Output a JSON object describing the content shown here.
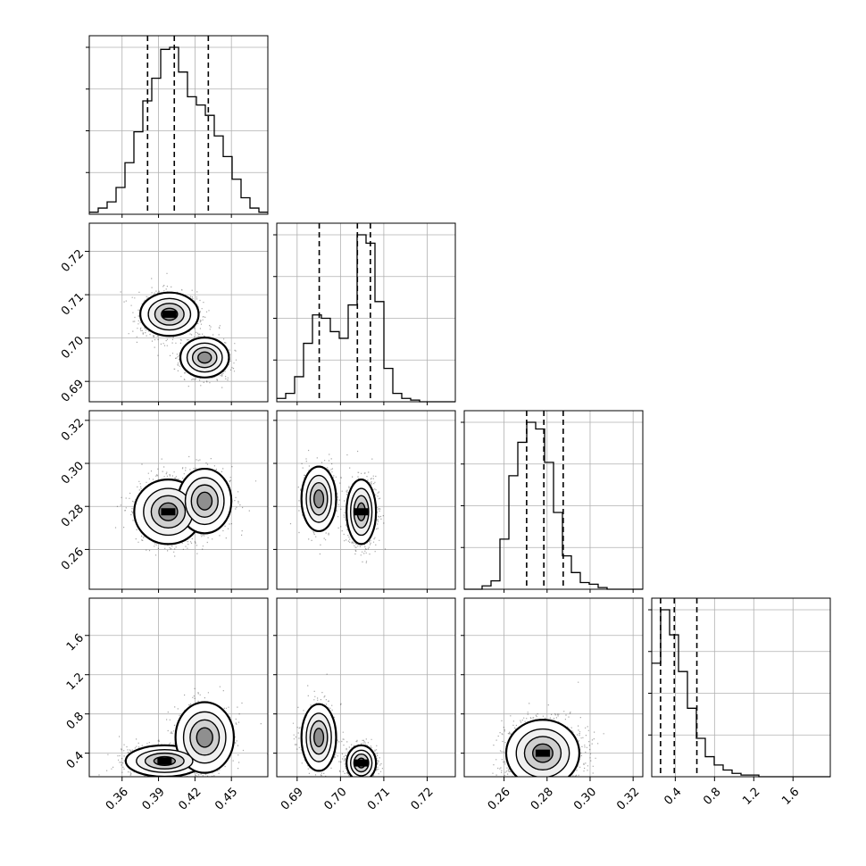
{
  "chart_data": {
    "type": "corner",
    "title": "",
    "grid": true,
    "parameters": [
      {
        "name": "",
        "range": [
          0.333,
          0.48
        ],
        "ticks": [
          0.36,
          0.39,
          0.42,
          0.45
        ],
        "tick_labels": [
          "0.36",
          "0.39",
          "0.42",
          "0.45"
        ],
        "quantiles": [
          0.381,
          0.403,
          0.431
        ]
      },
      {
        "name": "",
        "range": [
          0.6853,
          0.7265
        ],
        "ticks": [
          0.69,
          0.7,
          0.71,
          0.72
        ],
        "tick_labels": [
          "0.69",
          "0.70",
          "0.71",
          "0.72"
        ],
        "quantiles": [
          0.6951,
          0.7039,
          0.7069
        ]
      },
      {
        "name": "",
        "range": [
          0.2415,
          0.3245
        ],
        "ticks": [
          0.26,
          0.28,
          0.3,
          0.32
        ],
        "tick_labels": [
          "0.26",
          "0.28",
          "0.30",
          "0.32"
        ],
        "quantiles": [
          0.2705,
          0.2785,
          0.2875
        ]
      },
      {
        "name": "",
        "range": [
          0.16,
          1.98
        ],
        "ticks": [
          0.4,
          0.8,
          1.2,
          1.6
        ],
        "tick_labels": [
          "0.4",
          "0.8",
          "1.2",
          "1.6"
        ],
        "quantiles": [
          0.25,
          0.39,
          0.62
        ]
      }
    ],
    "histograms": [
      {
        "param": 0,
        "bins_start": 0.333,
        "bin_width": 0.00735,
        "counts": [
          1,
          3,
          6,
          13,
          25,
          40,
          55,
          66,
          80,
          81,
          69,
          57,
          53,
          48,
          38,
          28,
          17,
          8,
          3,
          1
        ]
      },
      {
        "param": 1,
        "bins_start": 0.6853,
        "bin_width": 0.00206,
        "counts": [
          2,
          5,
          15,
          35,
          52,
          50,
          42,
          38,
          58,
          100,
          95,
          60,
          20,
          5,
          2,
          1,
          0,
          0,
          0,
          0
        ]
      },
      {
        "param": 2,
        "bins_start": 0.2415,
        "bin_width": 0.00415,
        "counts": [
          0,
          0,
          2,
          5,
          30,
          68,
          88,
          100,
          96,
          76,
          46,
          20,
          10,
          4,
          3,
          1,
          0,
          0,
          0,
          0
        ]
      },
      {
        "param": 3,
        "bins_start": 0.16,
        "bin_width": 0.091,
        "counts": [
          68,
          100,
          85,
          63,
          41,
          23,
          12,
          7,
          4,
          2,
          1,
          1,
          0,
          0,
          0,
          0,
          0,
          0,
          0,
          0
        ]
      }
    ],
    "scatter_panels": [
      {
        "x_param": 0,
        "y_param": 1,
        "clusters": [
          {
            "cx": 0.399,
            "cy": 0.7055,
            "sx": 0.012,
            "sy": 0.0025,
            "weight": 0.6
          },
          {
            "cx": 0.428,
            "cy": 0.6955,
            "sx": 0.01,
            "sy": 0.0023,
            "weight": 0.4
          }
        ]
      },
      {
        "x_param": 0,
        "y_param": 2,
        "clusters": [
          {
            "cx": 0.398,
            "cy": 0.2775,
            "sx": 0.014,
            "sy": 0.0075,
            "weight": 0.6
          },
          {
            "cx": 0.428,
            "cy": 0.2825,
            "sx": 0.011,
            "sy": 0.0075,
            "weight": 0.4
          }
        ]
      },
      {
        "x_param": 0,
        "y_param": 3,
        "clusters": [
          {
            "cx": 0.395,
            "cy": 0.32,
            "sx": 0.016,
            "sy": 0.08,
            "weight": 0.6
          },
          {
            "cx": 0.428,
            "cy": 0.56,
            "sx": 0.012,
            "sy": 0.18,
            "weight": 0.4
          }
        ]
      },
      {
        "x_param": 1,
        "y_param": 2,
        "clusters": [
          {
            "cx": 0.7048,
            "cy": 0.2775,
            "sx": 0.0017,
            "sy": 0.0075,
            "weight": 0.6
          },
          {
            "cx": 0.695,
            "cy": 0.2835,
            "sx": 0.002,
            "sy": 0.0075,
            "weight": 0.4
          }
        ]
      },
      {
        "x_param": 1,
        "y_param": 3,
        "clusters": [
          {
            "cx": 0.7048,
            "cy": 0.3,
            "sx": 0.0017,
            "sy": 0.09,
            "weight": 0.6
          },
          {
            "cx": 0.695,
            "cy": 0.56,
            "sx": 0.002,
            "sy": 0.17,
            "weight": 0.4
          }
        ]
      },
      {
        "x_param": 2,
        "y_param": 3,
        "clusters": [
          {
            "cx": 0.278,
            "cy": 0.4,
            "sx": 0.0085,
            "sy": 0.17,
            "weight": 1.0
          }
        ]
      }
    ]
  }
}
